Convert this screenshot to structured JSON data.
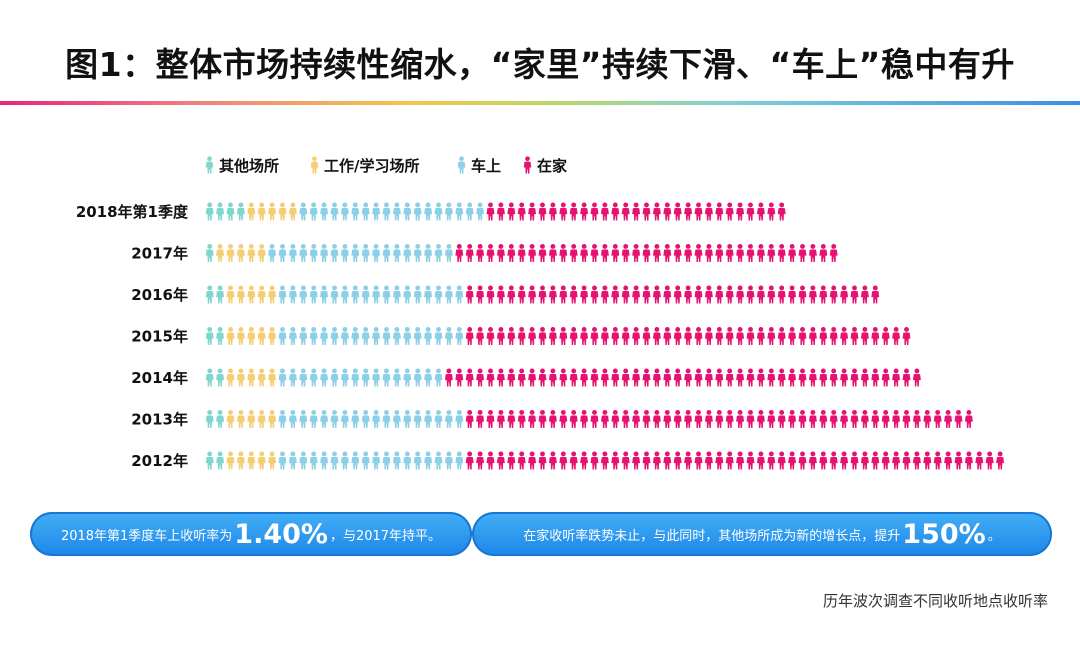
{
  "title": "图1：整体市场持续性缩水，“家里”持续下滑、“车上”稳中有升",
  "colors": {
    "other": "#7fd6cf",
    "work": "#f5cd72",
    "car": "#8ccfe6",
    "home": "#e5136f",
    "callout": "#2f9bf0"
  },
  "chart_data": {
    "type": "bar",
    "orientation": "horizontal",
    "stacked": true,
    "mark": "pictogram-person-icons",
    "categories": [
      "2018年第1季度",
      "2017年",
      "2016年",
      "2015年",
      "2014年",
      "2013年",
      "2012年"
    ],
    "series": [
      {
        "name": "其他场所",
        "key": "other",
        "icon_counts": [
          4,
          1,
          2,
          2,
          2,
          2,
          2
        ]
      },
      {
        "name": "工作/学习场所",
        "key": "work",
        "icon_counts": [
          5,
          5,
          5,
          5,
          5,
          5,
          5
        ]
      },
      {
        "name": "车上",
        "key": "car",
        "icon_counts": [
          18,
          18,
          18,
          18,
          16,
          18,
          18
        ]
      },
      {
        "name": "在家",
        "key": "home",
        "icon_counts": [
          29,
          37,
          40,
          43,
          46,
          49,
          52
        ]
      }
    ],
    "legend_position": "top"
  },
  "callouts": {
    "left": {
      "prefix": "2018年第1季度车上收听率为",
      "big": "1.40%",
      "suffix": "，与2017年持平。"
    },
    "right": {
      "prefix": "在家收听率跌势未止，与此同时，其他场所成为新的增长点，提升",
      "big": "150%",
      "suffix": "。"
    }
  },
  "source": "历年波次调查不同收听地点收听率"
}
